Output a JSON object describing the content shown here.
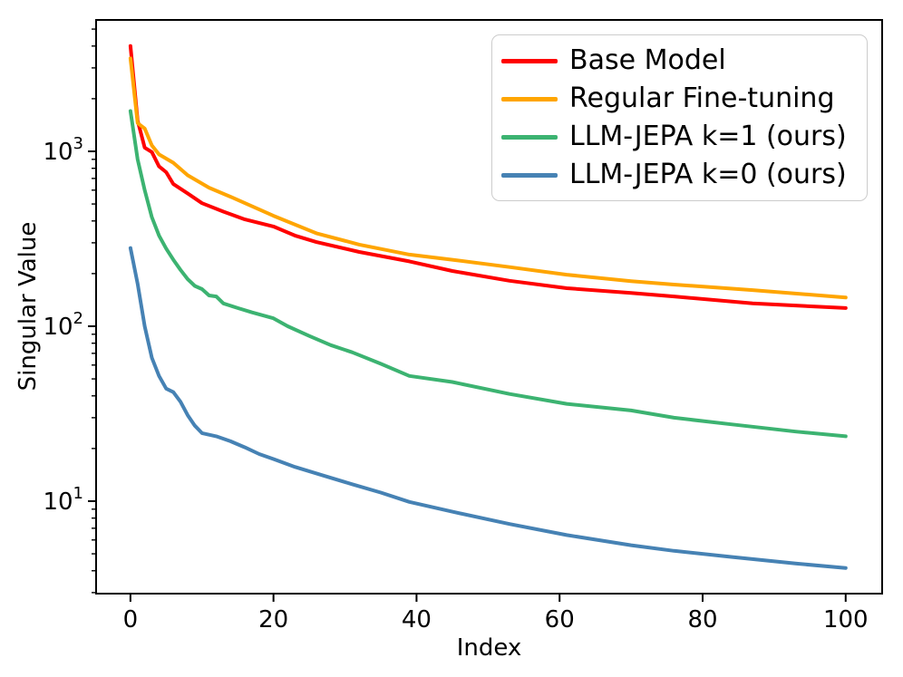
{
  "figure": {
    "background": "#ffffff",
    "text_color": "#000000"
  },
  "chart_data": {
    "type": "line",
    "title": "",
    "xlabel": "Index",
    "ylabel": "Singular Value",
    "yscale": "log",
    "grid": false,
    "legend_position": "upper right",
    "xlim": [
      -4.8,
      105.1
    ],
    "ylim": [
      2.96,
      5640
    ],
    "x_ticks": [
      0,
      20,
      40,
      60,
      80,
      100
    ],
    "y_major_tick_exponents": [
      1,
      2,
      3
    ],
    "y_tick_base": "10",
    "series": [
      {
        "name": "Base Model",
        "color": "#ff0000",
        "points": [
          [
            0,
            4000
          ],
          [
            1,
            1500
          ],
          [
            2,
            1050
          ],
          [
            3,
            990
          ],
          [
            4,
            820
          ],
          [
            5,
            760
          ],
          [
            6,
            650
          ],
          [
            8,
            575
          ],
          [
            10,
            505
          ],
          [
            13,
            452
          ],
          [
            16,
            408
          ],
          [
            20,
            372
          ],
          [
            23,
            330
          ],
          [
            26,
            303
          ],
          [
            32,
            266
          ],
          [
            39,
            235
          ],
          [
            45,
            207
          ],
          [
            53,
            182
          ],
          [
            61,
            165
          ],
          [
            70,
            155
          ],
          [
            76,
            148
          ],
          [
            87,
            135
          ],
          [
            100,
            127
          ]
        ]
      },
      {
        "name": "Regular Fine-tuning",
        "color": "#ffa500",
        "points": [
          [
            0,
            3400
          ],
          [
            1,
            1450
          ],
          [
            2,
            1350
          ],
          [
            3,
            1080
          ],
          [
            4,
            960
          ],
          [
            6,
            860
          ],
          [
            8,
            730
          ],
          [
            11,
            620
          ],
          [
            14,
            550
          ],
          [
            20,
            428
          ],
          [
            26,
            340
          ],
          [
            32,
            293
          ],
          [
            39,
            257
          ],
          [
            45,
            240
          ],
          [
            53,
            218
          ],
          [
            61,
            197
          ],
          [
            70,
            181
          ],
          [
            76,
            173
          ],
          [
            87,
            161
          ],
          [
            100,
            146
          ]
        ]
      },
      {
        "name": "LLM-JEPA k=1 (ours)",
        "color": "#3cb371",
        "points": [
          [
            0,
            1700
          ],
          [
            1,
            900
          ],
          [
            2,
            600
          ],
          [
            3,
            420
          ],
          [
            4,
            330
          ],
          [
            5,
            278
          ],
          [
            6,
            240
          ],
          [
            7,
            210
          ],
          [
            8,
            186
          ],
          [
            9,
            170
          ],
          [
            10,
            163
          ],
          [
            11,
            150
          ],
          [
            12,
            148
          ],
          [
            13,
            135
          ],
          [
            15,
            127
          ],
          [
            17,
            120
          ],
          [
            20,
            111
          ],
          [
            22,
            100
          ],
          [
            25,
            88
          ],
          [
            28,
            78
          ],
          [
            31,
            71
          ],
          [
            35,
            61
          ],
          [
            39,
            52
          ],
          [
            45,
            48
          ],
          [
            53,
            41
          ],
          [
            61,
            36
          ],
          [
            70,
            33
          ],
          [
            76,
            30
          ],
          [
            84,
            27.5
          ],
          [
            93,
            25
          ],
          [
            100,
            23.5
          ]
        ]
      },
      {
        "name": "LLM-JEPA k=0 (ours)",
        "color": "#4682b4",
        "points": [
          [
            0,
            280
          ],
          [
            1,
            175
          ],
          [
            2,
            100
          ],
          [
            3,
            66
          ],
          [
            4,
            52
          ],
          [
            5,
            44
          ],
          [
            6,
            42
          ],
          [
            7,
            37
          ],
          [
            8,
            31
          ],
          [
            9,
            27
          ],
          [
            10,
            24.5
          ],
          [
            12,
            23.5
          ],
          [
            14,
            22
          ],
          [
            16,
            20.3
          ],
          [
            18,
            18.6
          ],
          [
            20,
            17.4
          ],
          [
            23,
            15.7
          ],
          [
            27,
            14
          ],
          [
            31,
            12.5
          ],
          [
            35,
            11.2
          ],
          [
            39,
            9.9
          ],
          [
            45,
            8.7
          ],
          [
            53,
            7.4
          ],
          [
            61,
            6.4
          ],
          [
            70,
            5.6
          ],
          [
            76,
            5.2
          ],
          [
            84,
            4.8
          ],
          [
            93,
            4.4
          ],
          [
            100,
            4.15
          ]
        ]
      }
    ]
  }
}
